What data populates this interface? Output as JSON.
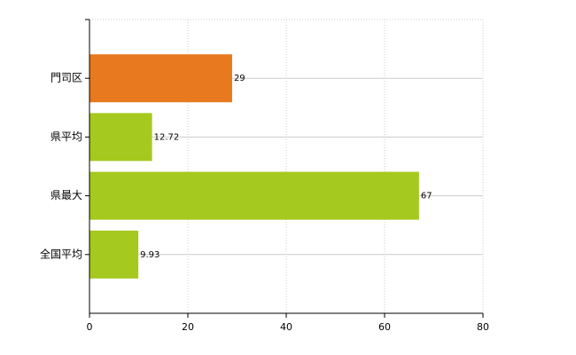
{
  "chart_data": {
    "type": "bar",
    "orientation": "horizontal",
    "categories": [
      "門司区",
      "県平均",
      "県最大",
      "全国平均"
    ],
    "values": [
      29,
      12.72,
      67,
      9.93
    ],
    "colors": [
      "#e8791e",
      "#a5c91e",
      "#a5c91e",
      "#a5c91e"
    ],
    "xlim": [
      0,
      80
    ],
    "xticks": [
      0,
      20,
      40,
      60,
      80
    ],
    "grid": true
  }
}
